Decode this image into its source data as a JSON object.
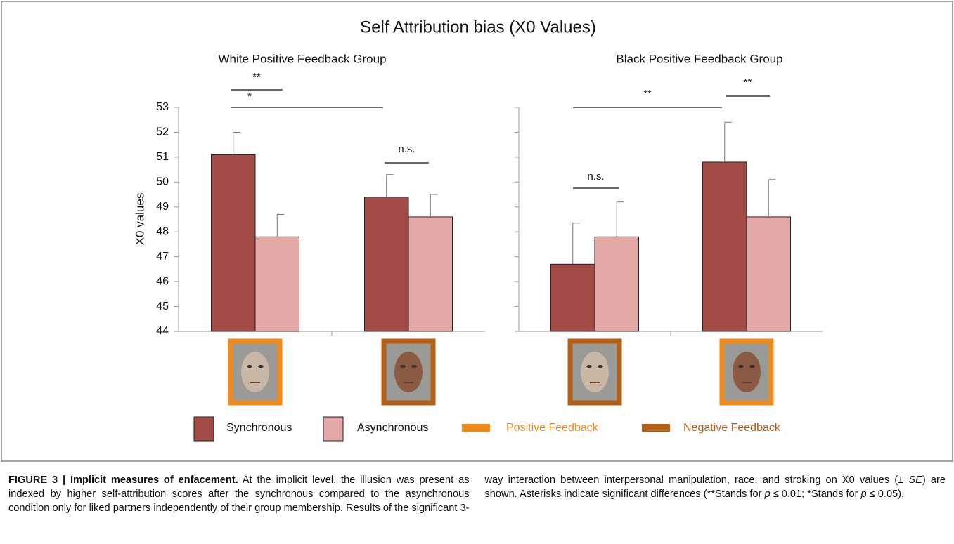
{
  "chart_data": {
    "type": "bar",
    "title": "Self Attribution bias (X0 Values)",
    "ylabel": "X0 values",
    "ylim": [
      44,
      53
    ],
    "yticks": [
      44,
      45,
      46,
      47,
      48,
      49,
      50,
      51,
      52,
      53
    ],
    "groups": [
      "White Positive Feedback Group",
      "Black Positive Feedback Group"
    ],
    "categories": [
      null,
      null,
      null,
      null
    ],
    "series": [
      {
        "name": "Synchronous",
        "color": "#a34b45",
        "values": [
          51.1,
          49.4,
          46.7,
          50.8
        ],
        "errors": [
          0.9,
          0.9,
          1.65,
          1.6
        ]
      },
      {
        "name": "Asynchronous",
        "color": "#e2a8a6",
        "values": [
          47.8,
          48.6,
          47.8,
          48.6
        ],
        "errors": [
          0.9,
          0.9,
          1.4,
          1.5
        ]
      }
    ],
    "feedback_legend": [
      {
        "name": "Positive Feedback",
        "color": "#f08a1c"
      },
      {
        "name": "Negative Feedback",
        "color": "#b35f17"
      }
    ],
    "annotations": [
      "**",
      "*",
      "n.s.",
      "n.s.",
      "**",
      "**"
    ]
  },
  "caption": {
    "label": "FIGURE 3 | Implicit measures of enfacement.",
    "segments": [
      " At the implicit level, the illusion was present as indexed by higher self-attribution scores after the synchronous compared to the asynchronous condition only for liked partners independently of their group membership. Results of the significant 3-way interaction between interpersonal manipulation, race, and stroking on X0 values (± ",
      "SE",
      ") are shown. Asterisks indicate significant differences (**Stands for ",
      "p",
      " ≤ 0.01; *Stands for ",
      "p",
      " ≤ 0.05)."
    ]
  }
}
